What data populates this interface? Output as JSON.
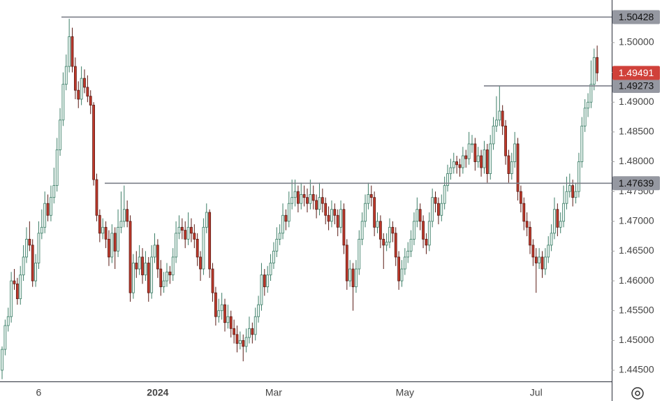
{
  "chart_data": {
    "type": "candlestick",
    "up_color": "#e9f3ef",
    "up_edge": "#3b7d66",
    "down_color": "#c0392b",
    "down_edge": "#5a1a14",
    "ylim": [
      1.44312,
      1.50715
    ],
    "yticks": [
      {
        "value": 1.445,
        "label": "1.44500"
      },
      {
        "value": 1.45,
        "label": "1.45000"
      },
      {
        "value": 1.455,
        "label": "1.45500"
      },
      {
        "value": 1.46,
        "label": "1.46000"
      },
      {
        "value": 1.465,
        "label": "1.46500"
      },
      {
        "value": 1.47,
        "label": "1.47000"
      },
      {
        "value": 1.475,
        "label": "1.47500"
      },
      {
        "value": 1.48,
        "label": "1.48000"
      },
      {
        "value": 1.485,
        "label": "1.48500"
      },
      {
        "value": 1.49,
        "label": "1.49000"
      },
      {
        "value": 1.495,
        "label": "1.49500"
      },
      {
        "value": 1.5,
        "label": "1.50000"
      }
    ],
    "levels": [
      1.50428,
      1.47639,
      1.49273
    ],
    "categories": [
      null,
      null,
      null,
      null,
      null,
      null,
      null,
      null,
      null,
      null,
      null,
      null,
      "6",
      null,
      null,
      null,
      null,
      null,
      null,
      null,
      null,
      null,
      null,
      null,
      null,
      null,
      null,
      null,
      null,
      null,
      null,
      null,
      null,
      null,
      null,
      null,
      null,
      null,
      null,
      null,
      null,
      null,
      null,
      null,
      null,
      null,
      null,
      null,
      null,
      null,
      null,
      "2024",
      null,
      null,
      null,
      null,
      null,
      null,
      null,
      null,
      null,
      null,
      null,
      null,
      null,
      null,
      null,
      null,
      null,
      null,
      null,
      null,
      null,
      null,
      null,
      null,
      null,
      null,
      null,
      null,
      null,
      null,
      null,
      null,
      null,
      null,
      null,
      null,
      null,
      "Mar",
      null,
      null,
      null,
      null,
      null,
      null,
      null,
      null,
      null,
      null,
      null,
      null,
      null,
      null,
      null,
      null,
      null,
      null,
      null,
      null,
      null,
      null,
      null,
      null,
      null,
      null,
      null,
      null,
      null,
      null,
      null,
      null,
      null,
      null,
      null,
      null,
      null,
      null,
      null,
      null,
      null,
      null,
      "May",
      null,
      null,
      null,
      null,
      null,
      null,
      null,
      null,
      null,
      null,
      null,
      null,
      null,
      null,
      null,
      null,
      null,
      null,
      null,
      null,
      null,
      null,
      null,
      null,
      null,
      null,
      null,
      null,
      null,
      null,
      null,
      null,
      null,
      null,
      null,
      null,
      null,
      null,
      null,
      null,
      null,
      null,
      "Jul",
      null,
      null,
      null,
      null,
      null,
      null,
      null,
      null,
      null,
      null,
      null,
      null,
      null,
      null,
      null,
      null
    ],
    "ohlc": [
      [
        1.445,
        1.449,
        1.4435,
        1.4485
      ],
      [
        1.4485,
        1.4535,
        1.4475,
        1.4525
      ],
      [
        1.4525,
        1.4555,
        1.4515,
        1.454
      ],
      [
        1.454,
        1.4615,
        1.453,
        1.46
      ],
      [
        1.46,
        1.462,
        1.4585,
        1.4595
      ],
      [
        1.4595,
        1.4605,
        1.456,
        1.457
      ],
      [
        1.457,
        1.4625,
        1.456,
        1.461
      ],
      [
        1.461,
        1.466,
        1.46,
        1.464
      ],
      [
        1.464,
        1.469,
        1.463,
        1.467
      ],
      [
        1.467,
        1.47,
        1.465,
        1.466
      ],
      [
        1.466,
        1.467,
        1.459,
        1.46
      ],
      [
        1.46,
        1.4645,
        1.459,
        1.463
      ],
      [
        1.463,
        1.47,
        1.462,
        1.468
      ],
      [
        1.468,
        1.472,
        1.467,
        1.469
      ],
      [
        1.469,
        1.475,
        1.468,
        1.473
      ],
      [
        1.473,
        1.4745,
        1.47,
        1.471
      ],
      [
        1.471,
        1.476,
        1.47,
        1.474
      ],
      [
        1.474,
        1.479,
        1.473,
        1.476
      ],
      [
        1.476,
        1.484,
        1.475,
        1.482
      ],
      [
        1.482,
        1.489,
        1.481,
        1.487
      ],
      [
        1.487,
        1.495,
        1.486,
        1.493
      ],
      [
        1.493,
        1.498,
        1.492,
        1.496
      ],
      [
        1.496,
        1.504,
        1.495,
        1.501
      ],
      [
        1.501,
        1.5025,
        1.495,
        1.496
      ],
      [
        1.496,
        1.4975,
        1.4905,
        1.492
      ],
      [
        1.492,
        1.4935,
        1.489,
        1.4905
      ],
      [
        1.4905,
        1.496,
        1.4895,
        1.494
      ],
      [
        1.494,
        1.4955,
        1.4915,
        1.4925
      ],
      [
        1.4925,
        1.4945,
        1.49,
        1.491
      ],
      [
        1.491,
        1.492,
        1.488,
        1.4895
      ],
      [
        1.4895,
        1.49,
        1.476,
        1.477
      ],
      [
        1.477,
        1.478,
        1.47,
        1.471
      ],
      [
        1.471,
        1.472,
        1.4665,
        1.468
      ],
      [
        1.468,
        1.4705,
        1.467,
        1.469
      ],
      [
        1.469,
        1.47,
        1.4655,
        1.467
      ],
      [
        1.467,
        1.4685,
        1.4625,
        1.464
      ],
      [
        1.464,
        1.4695,
        1.463,
        1.468
      ],
      [
        1.468,
        1.469,
        1.462,
        1.465
      ],
      [
        1.465,
        1.472,
        1.464,
        1.469
      ],
      [
        1.469,
        1.475,
        1.468,
        1.47
      ],
      [
        1.47,
        1.476,
        1.469,
        1.472
      ],
      [
        1.472,
        1.4735,
        1.469,
        1.47
      ],
      [
        1.47,
        1.471,
        1.4565,
        1.458
      ],
      [
        1.458,
        1.4645,
        1.457,
        1.463
      ],
      [
        1.463,
        1.465,
        1.4605,
        1.462
      ],
      [
        1.462,
        1.466,
        1.461,
        1.464
      ],
      [
        1.464,
        1.4655,
        1.4595,
        1.461
      ],
      [
        1.461,
        1.465,
        1.46,
        1.463
      ],
      [
        1.463,
        1.464,
        1.4565,
        1.458
      ],
      [
        1.458,
        1.466,
        1.457,
        1.464
      ],
      [
        1.464,
        1.468,
        1.463,
        1.466
      ],
      [
        1.466,
        1.467,
        1.4605,
        1.462
      ],
      [
        1.462,
        1.4635,
        1.4575,
        1.459
      ],
      [
        1.459,
        1.4615,
        1.458,
        1.46
      ],
      [
        1.46,
        1.463,
        1.459,
        1.4615
      ],
      [
        1.4615,
        1.4625,
        1.4595,
        1.461
      ],
      [
        1.461,
        1.4655,
        1.46,
        1.464
      ],
      [
        1.464,
        1.47,
        1.463,
        1.468
      ],
      [
        1.468,
        1.471,
        1.467,
        1.469
      ],
      [
        1.469,
        1.4705,
        1.467,
        1.4685
      ],
      [
        1.4685,
        1.47,
        1.4655,
        1.467
      ],
      [
        1.467,
        1.4715,
        1.466,
        1.469
      ],
      [
        1.469,
        1.4705,
        1.4665,
        1.468
      ],
      [
        1.468,
        1.4695,
        1.4655,
        1.467
      ],
      [
        1.467,
        1.468,
        1.4625,
        1.464
      ],
      [
        1.464,
        1.465,
        1.46,
        1.462
      ],
      [
        1.462,
        1.4705,
        1.461,
        1.469
      ],
      [
        1.469,
        1.473,
        1.468,
        1.4715
      ],
      [
        1.4715,
        1.472,
        1.4605,
        1.462
      ],
      [
        1.462,
        1.463,
        1.4565,
        1.458
      ],
      [
        1.458,
        1.459,
        1.4525,
        1.454
      ],
      [
        1.454,
        1.457,
        1.453,
        1.455
      ],
      [
        1.455,
        1.458,
        1.4535,
        1.456
      ],
      [
        1.456,
        1.457,
        1.4515,
        1.453
      ],
      [
        1.453,
        1.456,
        1.452,
        1.454
      ],
      [
        1.454,
        1.455,
        1.4505,
        1.452
      ],
      [
        1.452,
        1.4535,
        1.4495,
        1.451
      ],
      [
        1.451,
        1.4525,
        1.448,
        1.4495
      ],
      [
        1.4495,
        1.4515,
        1.4485,
        1.45
      ],
      [
        1.45,
        1.451,
        1.4465,
        1.449
      ],
      [
        1.449,
        1.452,
        1.448,
        1.4505
      ],
      [
        1.4505,
        1.454,
        1.4495,
        1.452
      ],
      [
        1.452,
        1.453,
        1.4495,
        1.451
      ],
      [
        1.451,
        1.4555,
        1.45,
        1.454
      ],
      [
        1.454,
        1.4575,
        1.453,
        1.456
      ],
      [
        1.456,
        1.463,
        1.455,
        1.461
      ],
      [
        1.461,
        1.462,
        1.4575,
        1.459
      ],
      [
        1.459,
        1.4625,
        1.458,
        1.461
      ],
      [
        1.461,
        1.4645,
        1.46,
        1.463
      ],
      [
        1.463,
        1.4665,
        1.462,
        1.465
      ],
      [
        1.465,
        1.469,
        1.464,
        1.467
      ],
      [
        1.467,
        1.4695,
        1.466,
        1.468
      ],
      [
        1.468,
        1.473,
        1.467,
        1.471
      ],
      [
        1.471,
        1.472,
        1.4685,
        1.47
      ],
      [
        1.47,
        1.475,
        1.469,
        1.473
      ],
      [
        1.473,
        1.477,
        1.472,
        1.474
      ],
      [
        1.474,
        1.477,
        1.4725,
        1.475
      ],
      [
        1.475,
        1.476,
        1.4715,
        1.473
      ],
      [
        1.473,
        1.4765,
        1.472,
        1.4745
      ],
      [
        1.4745,
        1.476,
        1.4725,
        1.474
      ],
      [
        1.474,
        1.4755,
        1.4715,
        1.473
      ],
      [
        1.473,
        1.477,
        1.472,
        1.4745
      ],
      [
        1.4745,
        1.476,
        1.472,
        1.4735
      ],
      [
        1.4735,
        1.4745,
        1.4705,
        1.472
      ],
      [
        1.472,
        1.4765,
        1.471,
        1.474
      ],
      [
        1.474,
        1.4755,
        1.4715,
        1.473
      ],
      [
        1.473,
        1.474,
        1.4695,
        1.471
      ],
      [
        1.471,
        1.4725,
        1.4685,
        1.47
      ],
      [
        1.47,
        1.4735,
        1.469,
        1.472
      ],
      [
        1.472,
        1.473,
        1.4695,
        1.471
      ],
      [
        1.471,
        1.472,
        1.4675,
        1.469
      ],
      [
        1.469,
        1.4735,
        1.468,
        1.472
      ],
      [
        1.472,
        1.473,
        1.4645,
        1.466
      ],
      [
        1.466,
        1.467,
        1.4585,
        1.46
      ],
      [
        1.46,
        1.4635,
        1.459,
        1.462
      ],
      [
        1.462,
        1.463,
        1.455,
        1.459
      ],
      [
        1.459,
        1.4635,
        1.458,
        1.462
      ],
      [
        1.462,
        1.4685,
        1.461,
        1.467
      ],
      [
        1.467,
        1.4715,
        1.466,
        1.47
      ],
      [
        1.47,
        1.4745,
        1.469,
        1.473
      ],
      [
        1.473,
        1.4765,
        1.472,
        1.4745
      ],
      [
        1.4745,
        1.476,
        1.4725,
        1.474
      ],
      [
        1.474,
        1.475,
        1.4675,
        1.469
      ],
      [
        1.469,
        1.4715,
        1.468,
        1.47
      ],
      [
        1.47,
        1.471,
        1.4655,
        1.467
      ],
      [
        1.467,
        1.468,
        1.462,
        1.466
      ],
      [
        1.466,
        1.468,
        1.465,
        1.4665
      ],
      [
        1.4665,
        1.4705,
        1.4655,
        1.469
      ],
      [
        1.469,
        1.47,
        1.4665,
        1.468
      ],
      [
        1.468,
        1.469,
        1.4625,
        1.464
      ],
      [
        1.464,
        1.465,
        1.4585,
        1.46
      ],
      [
        1.46,
        1.4635,
        1.459,
        1.462
      ],
      [
        1.462,
        1.4655,
        1.461,
        1.464
      ],
      [
        1.464,
        1.4665,
        1.463,
        1.465
      ],
      [
        1.465,
        1.4685,
        1.464,
        1.467
      ],
      [
        1.467,
        1.4715,
        1.466,
        1.47
      ],
      [
        1.47,
        1.474,
        1.469,
        1.472
      ],
      [
        1.472,
        1.473,
        1.4685,
        1.47
      ],
      [
        1.47,
        1.471,
        1.4655,
        1.467
      ],
      [
        1.467,
        1.468,
        1.4645,
        1.466
      ],
      [
        1.466,
        1.4715,
        1.465,
        1.47
      ],
      [
        1.47,
        1.4755,
        1.469,
        1.474
      ],
      [
        1.474,
        1.475,
        1.4715,
        1.473
      ],
      [
        1.473,
        1.474,
        1.4695,
        1.471
      ],
      [
        1.471,
        1.4745,
        1.47,
        1.473
      ],
      [
        1.473,
        1.4775,
        1.472,
        1.476
      ],
      [
        1.476,
        1.4795,
        1.475,
        1.478
      ],
      [
        1.478,
        1.4805,
        1.477,
        1.479
      ],
      [
        1.479,
        1.4815,
        1.478,
        1.48
      ],
      [
        1.48,
        1.481,
        1.478,
        1.4795
      ],
      [
        1.4795,
        1.4805,
        1.4775,
        1.479
      ],
      [
        1.479,
        1.4825,
        1.478,
        1.481
      ],
      [
        1.481,
        1.482,
        1.479,
        1.4805
      ],
      [
        1.4805,
        1.485,
        1.4795,
        1.483
      ],
      [
        1.483,
        1.4845,
        1.4815,
        1.483
      ],
      [
        1.483,
        1.484,
        1.4785,
        1.48
      ],
      [
        1.48,
        1.4825,
        1.479,
        1.481
      ],
      [
        1.481,
        1.482,
        1.4775,
        1.479
      ],
      [
        1.479,
        1.4835,
        1.478,
        1.482
      ],
      [
        1.482,
        1.483,
        1.4765,
        1.478
      ],
      [
        1.478,
        1.4845,
        1.477,
        1.483
      ],
      [
        1.483,
        1.4875,
        1.482,
        1.486
      ],
      [
        1.486,
        1.491,
        1.485,
        1.487
      ],
      [
        1.487,
        1.4927,
        1.486,
        1.4885
      ],
      [
        1.4885,
        1.4895,
        1.4845,
        1.486
      ],
      [
        1.486,
        1.487,
        1.4795,
        1.481
      ],
      [
        1.481,
        1.482,
        1.4765,
        1.478
      ],
      [
        1.478,
        1.4815,
        1.477,
        1.48
      ],
      [
        1.48,
        1.485,
        1.479,
        1.483
      ],
      [
        1.483,
        1.484,
        1.4735,
        1.475
      ],
      [
        1.475,
        1.476,
        1.4715,
        1.473
      ],
      [
        1.473,
        1.474,
        1.4685,
        1.47
      ],
      [
        1.47,
        1.4715,
        1.4675,
        1.469
      ],
      [
        1.469,
        1.47,
        1.4645,
        1.466
      ],
      [
        1.466,
        1.467,
        1.4625,
        1.464
      ],
      [
        1.464,
        1.4655,
        1.458,
        1.463
      ],
      [
        1.463,
        1.4655,
        1.462,
        1.464
      ],
      [
        1.464,
        1.465,
        1.4605,
        1.462
      ],
      [
        1.462,
        1.4655,
        1.461,
        1.464
      ],
      [
        1.464,
        1.4675,
        1.463,
        1.466
      ],
      [
        1.466,
        1.4695,
        1.465,
        1.468
      ],
      [
        1.468,
        1.474,
        1.467,
        1.472
      ],
      [
        1.472,
        1.473,
        1.4675,
        1.469
      ],
      [
        1.469,
        1.4715,
        1.468,
        1.47
      ],
      [
        1.47,
        1.476,
        1.469,
        1.473
      ],
      [
        1.473,
        1.4775,
        1.472,
        1.475
      ],
      [
        1.475,
        1.478,
        1.474,
        1.476
      ],
      [
        1.476,
        1.477,
        1.4725,
        1.474
      ],
      [
        1.474,
        1.4765,
        1.473,
        1.475
      ],
      [
        1.475,
        1.4815,
        1.474,
        1.48
      ],
      [
        1.48,
        1.4875,
        1.479,
        1.486
      ],
      [
        1.486,
        1.4905,
        1.485,
        1.489
      ],
      [
        1.489,
        1.4915,
        1.4875,
        1.49
      ],
      [
        1.49,
        1.497,
        1.489,
        1.493
      ],
      [
        1.493,
        1.499,
        1.492,
        1.4975
      ],
      [
        1.4975,
        1.4995,
        1.4935,
        1.49491
      ]
    ]
  }
}
